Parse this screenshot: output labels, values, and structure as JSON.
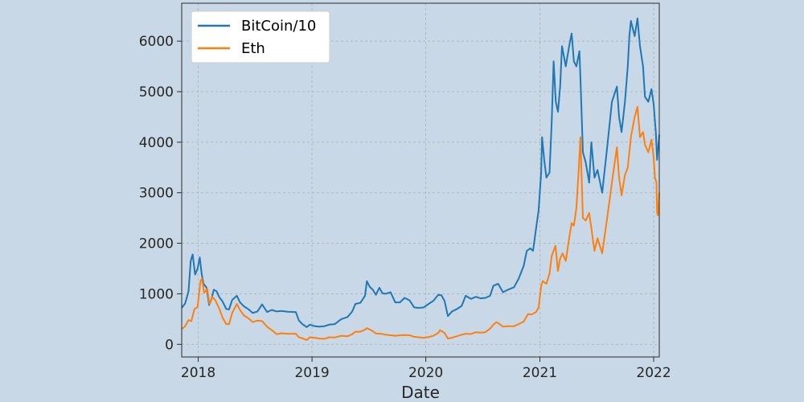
{
  "chart_data": {
    "type": "line",
    "title": "",
    "xlabel": "Date",
    "ylabel": "",
    "x_axis": "date",
    "xlim": [
      "2017-11-09",
      "2022-01-19"
    ],
    "ylim": [
      -250,
      6750
    ],
    "xticks": [
      {
        "label": "2018",
        "date": "2018-01-01"
      },
      {
        "label": "2019",
        "date": "2019-01-01"
      },
      {
        "label": "2020",
        "date": "2020-01-01"
      },
      {
        "label": "2021",
        "date": "2021-01-01"
      },
      {
        "label": "2022",
        "date": "2022-01-01"
      }
    ],
    "yticks": [
      0,
      1000,
      2000,
      3000,
      4000,
      5000,
      6000
    ],
    "grid": true,
    "legend": "top-left",
    "series": [
      {
        "name": "BitCoin/10",
        "color": "#1f77b4",
        "points": [
          [
            "2017-11-09",
            720
          ],
          [
            "2017-11-20",
            810
          ],
          [
            "2017-12-01",
            1050
          ],
          [
            "2017-12-08",
            1650
          ],
          [
            "2017-12-14",
            1780
          ],
          [
            "2017-12-22",
            1380
          ],
          [
            "2017-12-30",
            1500
          ],
          [
            "2018-01-06",
            1720
          ],
          [
            "2018-01-12",
            1400
          ],
          [
            "2018-01-18",
            1200
          ],
          [
            "2018-01-28",
            1120
          ],
          [
            "2018-02-05",
            780
          ],
          [
            "2018-02-12",
            880
          ],
          [
            "2018-02-20",
            1080
          ],
          [
            "2018-03-01",
            1050
          ],
          [
            "2018-03-10",
            930
          ],
          [
            "2018-03-20",
            850
          ],
          [
            "2018-04-01",
            700
          ],
          [
            "2018-04-10",
            690
          ],
          [
            "2018-04-20",
            880
          ],
          [
            "2018-05-05",
            960
          ],
          [
            "2018-05-15",
            830
          ],
          [
            "2018-05-28",
            750
          ],
          [
            "2018-06-10",
            700
          ],
          [
            "2018-06-25",
            620
          ],
          [
            "2018-07-10",
            650
          ],
          [
            "2018-07-25",
            790
          ],
          [
            "2018-08-10",
            640
          ],
          [
            "2018-08-25",
            680
          ],
          [
            "2018-09-10",
            650
          ],
          [
            "2018-09-25",
            660
          ],
          [
            "2018-10-15",
            645
          ],
          [
            "2018-11-10",
            640
          ],
          [
            "2018-11-20",
            470
          ],
          [
            "2018-12-01",
            400
          ],
          [
            "2018-12-15",
            340
          ],
          [
            "2018-12-25",
            390
          ],
          [
            "2019-01-10",
            360
          ],
          [
            "2019-01-25",
            350
          ],
          [
            "2019-02-10",
            360
          ],
          [
            "2019-02-25",
            390
          ],
          [
            "2019-03-15",
            400
          ],
          [
            "2019-04-05",
            500
          ],
          [
            "2019-04-25",
            540
          ],
          [
            "2019-05-10",
            650
          ],
          [
            "2019-05-20",
            800
          ],
          [
            "2019-06-05",
            820
          ],
          [
            "2019-06-20",
            960
          ],
          [
            "2019-06-26",
            1250
          ],
          [
            "2019-07-05",
            1140
          ],
          [
            "2019-07-15",
            1080
          ],
          [
            "2019-07-25",
            980
          ],
          [
            "2019-08-05",
            1120
          ],
          [
            "2019-08-15",
            1010
          ],
          [
            "2019-08-25",
            1000
          ],
          [
            "2019-09-10",
            1030
          ],
          [
            "2019-09-25",
            830
          ],
          [
            "2019-10-10",
            830
          ],
          [
            "2019-10-25",
            920
          ],
          [
            "2019-11-10",
            870
          ],
          [
            "2019-11-25",
            730
          ],
          [
            "2019-12-10",
            720
          ],
          [
            "2019-12-25",
            730
          ],
          [
            "2020-01-10",
            800
          ],
          [
            "2020-01-25",
            860
          ],
          [
            "2020-02-10",
            980
          ],
          [
            "2020-02-20",
            970
          ],
          [
            "2020-03-01",
            860
          ],
          [
            "2020-03-12",
            560
          ],
          [
            "2020-03-25",
            650
          ],
          [
            "2020-04-10",
            700
          ],
          [
            "2020-04-25",
            760
          ],
          [
            "2020-05-08",
            960
          ],
          [
            "2020-05-25",
            900
          ],
          [
            "2020-06-10",
            940
          ],
          [
            "2020-06-25",
            910
          ],
          [
            "2020-07-10",
            920
          ],
          [
            "2020-07-25",
            960
          ],
          [
            "2020-08-05",
            1160
          ],
          [
            "2020-08-20",
            1200
          ],
          [
            "2020-09-05",
            1030
          ],
          [
            "2020-09-20",
            1080
          ],
          [
            "2020-10-10",
            1130
          ],
          [
            "2020-10-25",
            1300
          ],
          [
            "2020-11-10",
            1550
          ],
          [
            "2020-11-20",
            1850
          ],
          [
            "2020-12-01",
            1900
          ],
          [
            "2020-12-10",
            1850
          ],
          [
            "2020-12-20",
            2300
          ],
          [
            "2020-12-28",
            2650
          ],
          [
            "2021-01-05",
            3400
          ],
          [
            "2021-01-08",
            4100
          ],
          [
            "2021-01-15",
            3650
          ],
          [
            "2021-01-22",
            3300
          ],
          [
            "2021-02-01",
            3400
          ],
          [
            "2021-02-08",
            4400
          ],
          [
            "2021-02-14",
            5600
          ],
          [
            "2021-02-21",
            4800
          ],
          [
            "2021-02-28",
            4600
          ],
          [
            "2021-03-07",
            5100
          ],
          [
            "2021-03-13",
            5900
          ],
          [
            "2021-03-25",
            5500
          ],
          [
            "2021-04-05",
            5900
          ],
          [
            "2021-04-13",
            6150
          ],
          [
            "2021-04-20",
            5600
          ],
          [
            "2021-04-28",
            5500
          ],
          [
            "2021-05-08",
            5800
          ],
          [
            "2021-05-12",
            5100
          ],
          [
            "2021-05-19",
            3800
          ],
          [
            "2021-05-28",
            3600
          ],
          [
            "2021-06-08",
            3200
          ],
          [
            "2021-06-15",
            4000
          ],
          [
            "2021-06-25",
            3300
          ],
          [
            "2021-07-05",
            3450
          ],
          [
            "2021-07-20",
            3000
          ],
          [
            "2021-08-05",
            3900
          ],
          [
            "2021-08-20",
            4800
          ],
          [
            "2021-09-05",
            5100
          ],
          [
            "2021-09-12",
            4500
          ],
          [
            "2021-09-20",
            4200
          ],
          [
            "2021-10-01",
            4800
          ],
          [
            "2021-10-10",
            5500
          ],
          [
            "2021-10-15",
            6100
          ],
          [
            "2021-10-20",
            6400
          ],
          [
            "2021-11-01",
            6100
          ],
          [
            "2021-11-10",
            6450
          ],
          [
            "2021-11-18",
            5900
          ],
          [
            "2021-11-28",
            5500
          ],
          [
            "2021-12-04",
            4900
          ],
          [
            "2021-12-15",
            4800
          ],
          [
            "2021-12-25",
            5050
          ],
          [
            "2022-01-01",
            4750
          ],
          [
            "2022-01-08",
            4200
          ],
          [
            "2022-01-12",
            3650
          ],
          [
            "2022-01-19",
            4150
          ]
        ]
      },
      {
        "name": "Eth",
        "color": "#ff7f0e",
        "points": [
          [
            "2017-11-09",
            300
          ],
          [
            "2017-11-20",
            360
          ],
          [
            "2017-12-01",
            480
          ],
          [
            "2017-12-10",
            460
          ],
          [
            "2017-12-20",
            700
          ],
          [
            "2017-12-30",
            740
          ],
          [
            "2018-01-08",
            1250
          ],
          [
            "2018-01-13",
            1300
          ],
          [
            "2018-01-20",
            1020
          ],
          [
            "2018-01-30",
            1100
          ],
          [
            "2018-02-06",
            800
          ],
          [
            "2018-02-15",
            940
          ],
          [
            "2018-02-25",
            870
          ],
          [
            "2018-03-10",
            700
          ],
          [
            "2018-03-20",
            530
          ],
          [
            "2018-04-01",
            400
          ],
          [
            "2018-04-10",
            400
          ],
          [
            "2018-04-20",
            620
          ],
          [
            "2018-05-05",
            800
          ],
          [
            "2018-05-15",
            680
          ],
          [
            "2018-05-28",
            570
          ],
          [
            "2018-06-10",
            520
          ],
          [
            "2018-06-25",
            440
          ],
          [
            "2018-07-10",
            470
          ],
          [
            "2018-07-25",
            460
          ],
          [
            "2018-08-10",
            350
          ],
          [
            "2018-08-25",
            280
          ],
          [
            "2018-09-10",
            200
          ],
          [
            "2018-09-25",
            220
          ],
          [
            "2018-10-15",
            210
          ],
          [
            "2018-11-10",
            210
          ],
          [
            "2018-11-20",
            140
          ],
          [
            "2018-12-01",
            120
          ],
          [
            "2018-12-15",
            85
          ],
          [
            "2018-12-25",
            140
          ],
          [
            "2019-01-10",
            130
          ],
          [
            "2019-01-25",
            115
          ],
          [
            "2019-02-10",
            110
          ],
          [
            "2019-02-25",
            140
          ],
          [
            "2019-03-15",
            135
          ],
          [
            "2019-04-05",
            170
          ],
          [
            "2019-04-25",
            160
          ],
          [
            "2019-05-10",
            200
          ],
          [
            "2019-05-20",
            250
          ],
          [
            "2019-06-05",
            250
          ],
          [
            "2019-06-20",
            290
          ],
          [
            "2019-06-26",
            320
          ],
          [
            "2019-07-10",
            280
          ],
          [
            "2019-07-25",
            215
          ],
          [
            "2019-08-10",
            210
          ],
          [
            "2019-08-25",
            190
          ],
          [
            "2019-09-10",
            180
          ],
          [
            "2019-09-25",
            170
          ],
          [
            "2019-10-10",
            180
          ],
          [
            "2019-10-25",
            185
          ],
          [
            "2019-11-10",
            180
          ],
          [
            "2019-11-25",
            150
          ],
          [
            "2019-12-10",
            140
          ],
          [
            "2019-12-25",
            130
          ],
          [
            "2020-01-10",
            145
          ],
          [
            "2020-01-25",
            170
          ],
          [
            "2020-02-10",
            225
          ],
          [
            "2020-02-16",
            280
          ],
          [
            "2020-03-01",
            225
          ],
          [
            "2020-03-12",
            115
          ],
          [
            "2020-03-25",
            130
          ],
          [
            "2020-04-10",
            160
          ],
          [
            "2020-04-25",
            190
          ],
          [
            "2020-05-08",
            210
          ],
          [
            "2020-05-25",
            205
          ],
          [
            "2020-06-10",
            240
          ],
          [
            "2020-06-25",
            230
          ],
          [
            "2020-07-10",
            240
          ],
          [
            "2020-07-25",
            310
          ],
          [
            "2020-08-05",
            390
          ],
          [
            "2020-08-15",
            440
          ],
          [
            "2020-09-05",
            350
          ],
          [
            "2020-09-20",
            360
          ],
          [
            "2020-10-10",
            360
          ],
          [
            "2020-10-25",
            400
          ],
          [
            "2020-11-10",
            450
          ],
          [
            "2020-11-24",
            600
          ],
          [
            "2020-12-05",
            590
          ],
          [
            "2020-12-20",
            640
          ],
          [
            "2020-12-28",
            730
          ],
          [
            "2021-01-05",
            1150
          ],
          [
            "2021-01-10",
            1250
          ],
          [
            "2021-01-22",
            1200
          ],
          [
            "2021-02-01",
            1400
          ],
          [
            "2021-02-08",
            1750
          ],
          [
            "2021-02-20",
            1950
          ],
          [
            "2021-02-28",
            1450
          ],
          [
            "2021-03-07",
            1700
          ],
          [
            "2021-03-15",
            1800
          ],
          [
            "2021-03-25",
            1650
          ],
          [
            "2021-04-05",
            2100
          ],
          [
            "2021-04-13",
            2400
          ],
          [
            "2021-04-20",
            2350
          ],
          [
            "2021-04-28",
            2700
          ],
          [
            "2021-05-05",
            3400
          ],
          [
            "2021-05-11",
            4100
          ],
          [
            "2021-05-19",
            2500
          ],
          [
            "2021-05-28",
            2450
          ],
          [
            "2021-06-08",
            2600
          ],
          [
            "2021-06-15",
            2300
          ],
          [
            "2021-06-25",
            1850
          ],
          [
            "2021-07-05",
            2100
          ],
          [
            "2021-07-20",
            1800
          ],
          [
            "2021-08-05",
            2500
          ],
          [
            "2021-08-20",
            3200
          ],
          [
            "2021-09-05",
            3900
          ],
          [
            "2021-09-12",
            3300
          ],
          [
            "2021-09-20",
            2950
          ],
          [
            "2021-10-01",
            3350
          ],
          [
            "2021-10-10",
            3500
          ],
          [
            "2021-10-20",
            4100
          ],
          [
            "2021-11-01",
            4500
          ],
          [
            "2021-11-10",
            4700
          ],
          [
            "2021-11-18",
            4100
          ],
          [
            "2021-11-28",
            4200
          ],
          [
            "2021-12-04",
            3950
          ],
          [
            "2021-12-15",
            3800
          ],
          [
            "2021-12-25",
            4050
          ],
          [
            "2022-01-01",
            3700
          ],
          [
            "2022-01-05",
            3300
          ],
          [
            "2022-01-10",
            3200
          ],
          [
            "2022-01-12",
            2600
          ],
          [
            "2022-01-15",
            2550
          ],
          [
            "2022-01-19",
            3000
          ]
        ]
      }
    ]
  }
}
